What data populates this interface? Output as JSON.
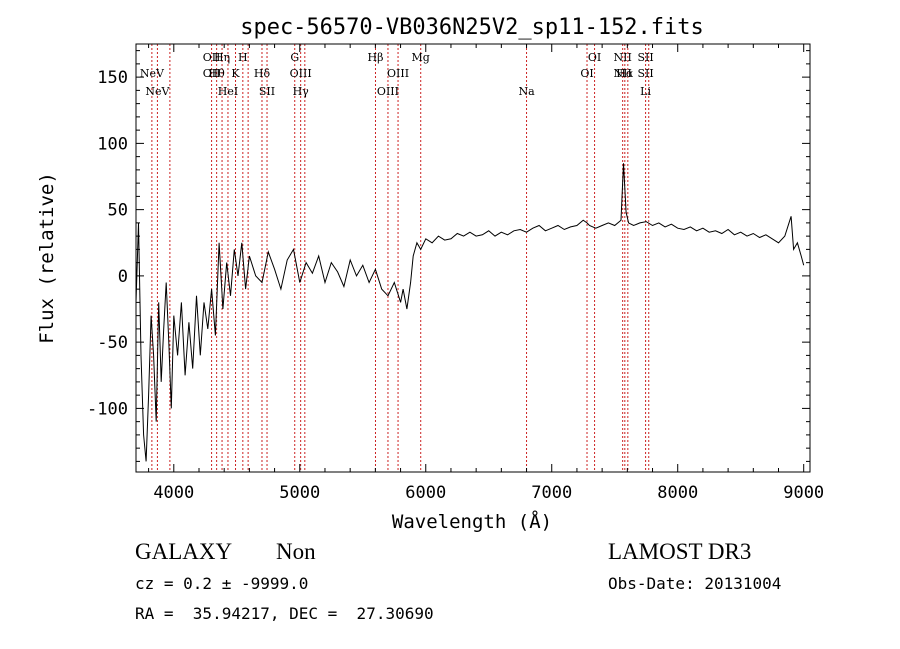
{
  "chart_data": {
    "type": "line",
    "title": "spec-56570-VB036N25V2_sp11-152.fits",
    "xlabel": "Wavelength (Å)",
    "ylabel": "Flux (relative)",
    "xlim": [
      3700,
      9050
    ],
    "ylim": [
      -148,
      175
    ],
    "xticks": [
      4000,
      5000,
      6000,
      7000,
      8000,
      9000
    ],
    "yticks": [
      -100,
      -50,
      0,
      50,
      100,
      150
    ],
    "series": [
      {
        "name": "flux",
        "points": [
          [
            3700,
            -20
          ],
          [
            3720,
            40
          ],
          [
            3740,
            -60
          ],
          [
            3760,
            -120
          ],
          [
            3780,
            -140
          ],
          [
            3800,
            -90
          ],
          [
            3820,
            -30
          ],
          [
            3840,
            -60
          ],
          [
            3860,
            -110
          ],
          [
            3880,
            -20
          ],
          [
            3900,
            -80
          ],
          [
            3920,
            -40
          ],
          [
            3940,
            -5
          ],
          [
            3960,
            -50
          ],
          [
            3980,
            -100
          ],
          [
            4000,
            -30
          ],
          [
            4030,
            -60
          ],
          [
            4060,
            -20
          ],
          [
            4090,
            -75
          ],
          [
            4120,
            -35
          ],
          [
            4150,
            -70
          ],
          [
            4180,
            -15
          ],
          [
            4210,
            -60
          ],
          [
            4240,
            -20
          ],
          [
            4270,
            -40
          ],
          [
            4300,
            -10
          ],
          [
            4330,
            -45
          ],
          [
            4360,
            25
          ],
          [
            4390,
            -25
          ],
          [
            4420,
            10
          ],
          [
            4450,
            -15
          ],
          [
            4480,
            20
          ],
          [
            4510,
            0
          ],
          [
            4540,
            25
          ],
          [
            4570,
            -10
          ],
          [
            4600,
            15
          ],
          [
            4650,
            0
          ],
          [
            4700,
            -5
          ],
          [
            4750,
            18
          ],
          [
            4800,
            5
          ],
          [
            4850,
            -10
          ],
          [
            4900,
            12
          ],
          [
            4950,
            20
          ],
          [
            5000,
            -5
          ],
          [
            5050,
            10
          ],
          [
            5100,
            2
          ],
          [
            5150,
            15
          ],
          [
            5200,
            -5
          ],
          [
            5250,
            10
          ],
          [
            5300,
            3
          ],
          [
            5350,
            -8
          ],
          [
            5400,
            12
          ],
          [
            5450,
            0
          ],
          [
            5500,
            8
          ],
          [
            5550,
            -5
          ],
          [
            5600,
            5
          ],
          [
            5650,
            -10
          ],
          [
            5700,
            -15
          ],
          [
            5750,
            -5
          ],
          [
            5800,
            -20
          ],
          [
            5820,
            -10
          ],
          [
            5850,
            -25
          ],
          [
            5880,
            -5
          ],
          [
            5900,
            15
          ],
          [
            5930,
            25
          ],
          [
            5960,
            20
          ],
          [
            6000,
            28
          ],
          [
            6050,
            25
          ],
          [
            6100,
            30
          ],
          [
            6150,
            27
          ],
          [
            6200,
            28
          ],
          [
            6250,
            32
          ],
          [
            6300,
            30
          ],
          [
            6350,
            33
          ],
          [
            6400,
            30
          ],
          [
            6450,
            31
          ],
          [
            6500,
            34
          ],
          [
            6550,
            30
          ],
          [
            6600,
            33
          ],
          [
            6650,
            31
          ],
          [
            6700,
            34
          ],
          [
            6750,
            35
          ],
          [
            6800,
            33
          ],
          [
            6850,
            36
          ],
          [
            6900,
            38
          ],
          [
            6950,
            34
          ],
          [
            7000,
            36
          ],
          [
            7050,
            38
          ],
          [
            7100,
            35
          ],
          [
            7150,
            37
          ],
          [
            7200,
            38
          ],
          [
            7250,
            42
          ],
          [
            7280,
            40
          ],
          [
            7300,
            38
          ],
          [
            7350,
            36
          ],
          [
            7400,
            38
          ],
          [
            7450,
            40
          ],
          [
            7500,
            38
          ],
          [
            7550,
            42
          ],
          [
            7570,
            85
          ],
          [
            7590,
            48
          ],
          [
            7610,
            40
          ],
          [
            7650,
            38
          ],
          [
            7700,
            40
          ],
          [
            7750,
            41
          ],
          [
            7800,
            38
          ],
          [
            7850,
            40
          ],
          [
            7900,
            37
          ],
          [
            7950,
            39
          ],
          [
            8000,
            36
          ],
          [
            8050,
            35
          ],
          [
            8100,
            37
          ],
          [
            8150,
            34
          ],
          [
            8200,
            36
          ],
          [
            8250,
            33
          ],
          [
            8300,
            34
          ],
          [
            8350,
            32
          ],
          [
            8400,
            35
          ],
          [
            8450,
            31
          ],
          [
            8500,
            33
          ],
          [
            8550,
            30
          ],
          [
            8600,
            32
          ],
          [
            8650,
            29
          ],
          [
            8700,
            31
          ],
          [
            8750,
            28
          ],
          [
            8800,
            25
          ],
          [
            8850,
            30
          ],
          [
            8900,
            45
          ],
          [
            8920,
            20
          ],
          [
            8950,
            25
          ],
          [
            8980,
            15
          ],
          [
            9000,
            8
          ]
        ]
      }
    ],
    "lines": [
      {
        "wl": 3826,
        "labels": [
          "NeV"
        ],
        "row": 1
      },
      {
        "wl": 3870,
        "labels": [
          "NeV"
        ],
        "row": 2
      },
      {
        "wl": 3969,
        "labels": [],
        "row": 0
      },
      {
        "wl": 4300,
        "labels": [
          "OII",
          "OII"
        ],
        "row": 0
      },
      {
        "wl": 4340,
        "labels": [
          "Hθ"
        ],
        "row": 1
      },
      {
        "wl": 4383,
        "labels": [
          "Hη"
        ],
        "row": 0
      },
      {
        "wl": 4430,
        "labels": [
          "HeI"
        ],
        "row": 2
      },
      {
        "wl": 4490,
        "labels": [
          "K"
        ],
        "row": 1
      },
      {
        "wl": 4548,
        "labels": [
          "H"
        ],
        "row": 0
      },
      {
        "wl": 4590,
        "labels": [],
        "row": 0
      },
      {
        "wl": 4700,
        "labels": [
          "Hδ"
        ],
        "row": 1
      },
      {
        "wl": 4740,
        "labels": [
          "SII"
        ],
        "row": 2
      },
      {
        "wl": 4960,
        "labels": [
          "G"
        ],
        "row": 0
      },
      {
        "wl": 5007,
        "labels": [
          "OIII",
          "Hγ"
        ],
        "row": 1
      },
      {
        "wl": 5040,
        "labels": [],
        "row": 0
      },
      {
        "wl": 5601,
        "labels": [
          "Hβ"
        ],
        "row": 0
      },
      {
        "wl": 5700,
        "labels": [
          "OIII"
        ],
        "row": 2
      },
      {
        "wl": 5780,
        "labels": [
          "OIII"
        ],
        "row": 1
      },
      {
        "wl": 5960,
        "labels": [
          "Mg"
        ],
        "row": 0
      },
      {
        "wl": 6800,
        "labels": [
          "Na"
        ],
        "row": 2
      },
      {
        "wl": 7280,
        "labels": [
          "OI"
        ],
        "row": 1
      },
      {
        "wl": 7340,
        "labels": [
          "OI"
        ],
        "row": 0
      },
      {
        "wl": 7563,
        "labels": [
          "NII",
          "NII"
        ],
        "row": 0
      },
      {
        "wl": 7580,
        "labels": [
          "Hα"
        ],
        "row": 1
      },
      {
        "wl": 7604,
        "labels": [],
        "row": 0
      },
      {
        "wl": 7745,
        "labels": [
          "SII",
          "SII",
          "Li"
        ],
        "row": 0
      },
      {
        "wl": 7770,
        "labels": [],
        "row": 0
      }
    ]
  },
  "info": {
    "class": "GALAXY",
    "subclass": "Non",
    "survey": "LAMOST DR3",
    "cz": "cz = 0.2 ± -9999.0",
    "obs_date": "Obs-Date: 20131004",
    "coords": "RA =  35.94217, DEC =  27.30690"
  }
}
